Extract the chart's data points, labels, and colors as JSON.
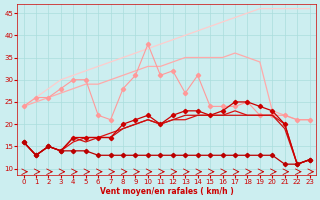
{
  "x": [
    0,
    1,
    2,
    3,
    4,
    5,
    6,
    7,
    8,
    9,
    10,
    11,
    12,
    13,
    14,
    15,
    16,
    17,
    18,
    19,
    20,
    21,
    22,
    23
  ],
  "series_zigzag_pink": [
    24,
    26,
    26,
    28,
    30,
    30,
    22,
    21,
    28,
    31,
    38,
    31,
    32,
    27,
    31,
    24,
    24,
    24,
    25,
    22,
    22,
    22,
    21,
    21
  ],
  "series_smooth_pink": [
    24,
    25,
    26,
    27,
    28,
    29,
    29,
    30,
    31,
    32,
    33,
    33,
    34,
    35,
    35,
    35,
    35,
    36,
    35,
    34,
    23,
    22,
    21,
    21
  ],
  "series_diag_light": [
    24,
    26,
    28,
    30,
    31,
    32,
    33,
    34,
    35,
    36,
    37,
    38,
    39,
    40,
    41,
    42,
    43,
    44,
    45,
    46,
    46,
    46,
    46,
    46
  ],
  "series_dark_min": [
    16,
    13,
    15,
    14,
    14,
    14,
    13,
    13,
    13,
    13,
    13,
    13,
    13,
    13,
    13,
    13,
    13,
    13,
    13,
    13,
    13,
    11,
    11,
    12
  ],
  "series_dark_max": [
    16,
    13,
    15,
    14,
    17,
    17,
    17,
    17,
    20,
    21,
    22,
    20,
    22,
    23,
    23,
    22,
    23,
    25,
    25,
    24,
    23,
    20,
    11,
    12
  ],
  "series_dark_med1": [
    16,
    13,
    15,
    14,
    16,
    17,
    17,
    18,
    19,
    20,
    21,
    20,
    21,
    21,
    22,
    22,
    22,
    23,
    22,
    22,
    22,
    20,
    11,
    12
  ],
  "series_dark_med2": [
    16,
    13,
    15,
    14,
    17,
    16,
    17,
    17,
    19,
    20,
    21,
    20,
    21,
    22,
    22,
    22,
    22,
    22,
    22,
    22,
    22,
    19,
    11,
    12
  ],
  "bg_color": "#cceef0",
  "grid_color": "#aadddd",
  "color_light_zigzag": "#ff9999",
  "color_light_smooth": "#ffaaaa",
  "color_lightest": "#ffcccc",
  "color_dark1": "#bb0000",
  "color_dark2": "#cc0000",
  "color_dark3": "#dd1111",
  "color_dark4": "#cc1111",
  "xlabel": "Vent moyen/en rafales ( km/h )",
  "xlim": [
    -0.5,
    23.5
  ],
  "ylim": [
    8.5,
    47
  ],
  "yticks": [
    10,
    15,
    20,
    25,
    30,
    35,
    40,
    45
  ],
  "xticks": [
    0,
    1,
    2,
    3,
    4,
    5,
    6,
    7,
    8,
    9,
    10,
    11,
    12,
    13,
    14,
    15,
    16,
    17,
    18,
    19,
    20,
    21,
    22,
    23
  ]
}
